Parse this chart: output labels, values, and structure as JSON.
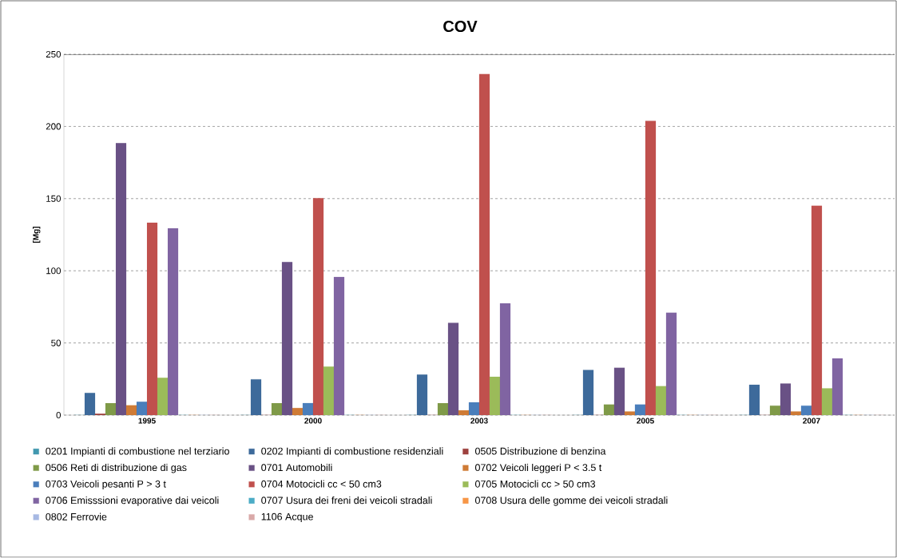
{
  "chart_data": {
    "type": "bar",
    "title": "COV",
    "ylabel": "[Mg]",
    "categories": [
      "1995",
      "2000",
      "2003",
      "2005",
      "2007"
    ],
    "ylim": [
      0,
      250
    ],
    "yticks": [
      0,
      50,
      100,
      150,
      200,
      250
    ],
    "grid": "y",
    "legend": "bottom",
    "series": [
      {
        "name": "0201 Impianti di combustione nel terziario",
        "color": "#4198af",
        "values": [
          0,
          0,
          0,
          0,
          0
        ]
      },
      {
        "name": "0202 Impianti di combustione residenziali",
        "color": "#3d6a9b",
        "values": [
          15.3,
          24.8,
          28,
          31.3,
          21
        ]
      },
      {
        "name": "0505 Distribuzione di benzina",
        "color": "#9e413e",
        "values": [
          1,
          0,
          0,
          0,
          0
        ]
      },
      {
        "name": "0506 Reti di distribuzione di gas",
        "color": "#7f9a48",
        "values": [
          8.3,
          8.3,
          8.3,
          7.3,
          6.5
        ]
      },
      {
        "name": "0701 Automobili",
        "color": "#695185",
        "values": [
          188.4,
          106,
          63.9,
          32.8,
          21.8
        ]
      },
      {
        "name": "0702 Veicoli leggeri P < 3.5 t",
        "color": "#cf7b35",
        "values": [
          6.8,
          4.9,
          3.3,
          2.5,
          2.5
        ]
      },
      {
        "name": "0703 Veicoli pesanti P > 3 t",
        "color": "#4a7ebb",
        "values": [
          9.2,
          8.3,
          8.8,
          7.3,
          6.5
        ]
      },
      {
        "name": "0704 Motocicli cc < 50 cm3",
        "color": "#c0504d",
        "values": [
          133.3,
          150.3,
          236.3,
          203.8,
          145
        ]
      },
      {
        "name": "0705 Motocicli cc > 50 cm3",
        "color": "#9bbb59",
        "values": [
          25.8,
          33.6,
          26.5,
          20,
          18.5
        ]
      },
      {
        "name": "0706 Emisssioni evaporative dai veicoli",
        "color": "#8064a2",
        "values": [
          129.4,
          95.7,
          77.4,
          70.9,
          39.3
        ]
      },
      {
        "name": "0707 Usura dei freni dei veicoli stradali",
        "color": "#4bacc6",
        "values": [
          0,
          0,
          0,
          0,
          0
        ]
      },
      {
        "name": "0708 Usura delle gomme dei veicoli stradali",
        "color": "#f79646",
        "values": [
          0,
          0,
          0,
          0,
          0
        ]
      },
      {
        "name": "0802 Ferrovie",
        "color": "#a7b9e3",
        "values": [
          0,
          0,
          0,
          0,
          0
        ]
      },
      {
        "name": "1106 Acque",
        "color": "#d9a9a8",
        "values": [
          0,
          0,
          0,
          0,
          0
        ]
      }
    ]
  }
}
